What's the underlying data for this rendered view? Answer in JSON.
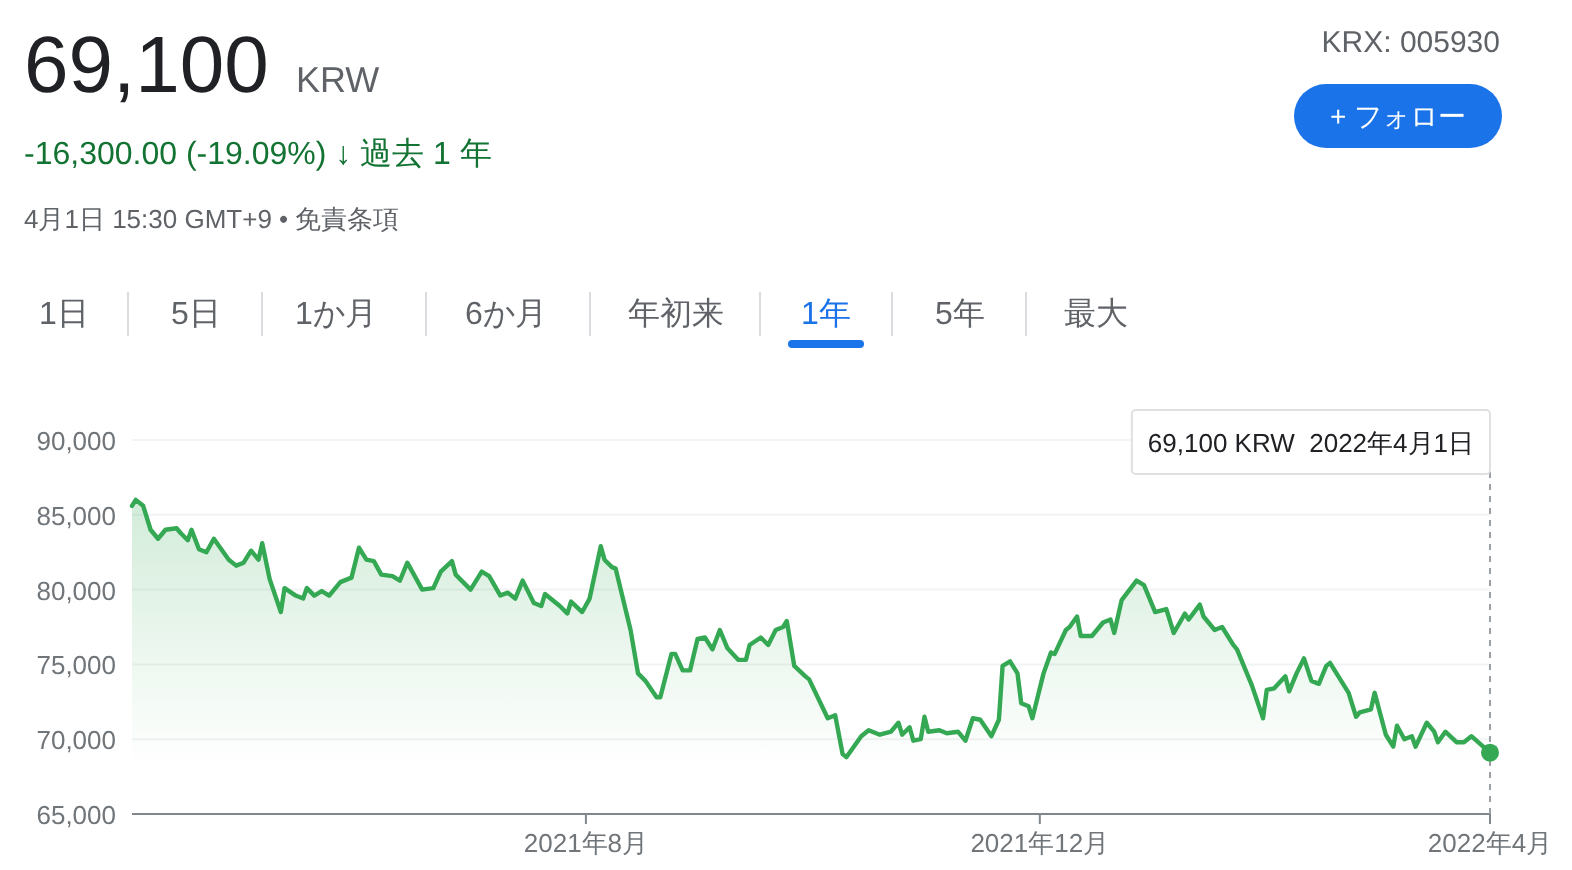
{
  "chart_data": {
    "type": "area",
    "title": "69,100",
    "subtitle": "-16,300.00 (-19.09%) ↓ 過去 1 年",
    "annotations": [
      "KRW",
      "4月1日 15:30 GMT+9 • 免責条項",
      "KRX: 005930",
      "+ フォロー",
      "1日",
      "5日",
      "1か月",
      "6か月",
      "年初来",
      "1年",
      "5年",
      "最大"
    ],
    "x": [
      "2021-04-01",
      "2021-04-02",
      "2021-04-04",
      "2021-04-06",
      "2021-04-08",
      "2021-04-10",
      "2021-04-13",
      "2021-04-14",
      "2021-04-16",
      "2021-04-17",
      "2021-04-19",
      "2021-04-21",
      "2021-04-23",
      "2021-04-27",
      "2021-04-29",
      "2021-05-01",
      "2021-05-03",
      "2021-05-05",
      "2021-05-06",
      "2021-05-08",
      "2021-05-11",
      "2021-05-12",
      "2021-05-15",
      "2021-05-17",
      "2021-05-18",
      "2021-05-20",
      "2021-05-22",
      "2021-05-24",
      "2021-05-27",
      "2021-05-30",
      "2021-06-01",
      "2021-06-03",
      "2021-06-05",
      "2021-06-07",
      "2021-06-10",
      "2021-06-12",
      "2021-06-14",
      "2021-06-16",
      "2021-06-18",
      "2021-06-21",
      "2021-06-23",
      "2021-06-26",
      "2021-06-27",
      "2021-07-01",
      "2021-07-04",
      "2021-07-06",
      "2021-07-09",
      "2021-07-11",
      "2021-07-13",
      "2021-07-15",
      "2021-07-18",
      "2021-07-20",
      "2021-07-21",
      "2021-07-25",
      "2021-07-27",
      "2021-07-28",
      "2021-07-31",
      "2021-08-02",
      "2021-08-05",
      "2021-08-06",
      "2021-08-08",
      "2021-08-09",
      "2021-08-13",
      "2021-08-15",
      "2021-08-17",
      "2021-08-20",
      "2021-08-21",
      "2021-08-24",
      "2021-08-25",
      "2021-08-27",
      "2021-08-29",
      "2021-08-31",
      "2021-09-02",
      "2021-09-04",
      "2021-09-06",
      "2021-09-08",
      "2021-09-11",
      "2021-09-13",
      "2021-09-14",
      "2021-09-17",
      "2021-09-19",
      "2021-09-21",
      "2021-09-23",
      "2021-09-24",
      "2021-09-26",
      "2021-09-29",
      "2021-09-30",
      "2021-10-05",
      "2021-10-07",
      "2021-10-09",
      "2021-10-10",
      "2021-10-14",
      "2021-10-16",
      "2021-10-19",
      "2021-10-22",
      "2021-10-24",
      "2021-10-25",
      "2021-10-27",
      "2021-10-28",
      "2021-10-30",
      "2021-10-31",
      "2021-11-01",
      "2021-11-04",
      "2021-11-06",
      "2021-11-09",
      "2021-11-11",
      "2021-11-13",
      "2021-11-15",
      "2021-11-18",
      "2021-11-20",
      "2021-11-21",
      "2021-11-23",
      "2021-11-25",
      "2021-11-26",
      "2021-11-28",
      "2021-11-29",
      "2021-12-02",
      "2021-12-04",
      "2021-12-05",
      "2021-12-08",
      "2021-12-09",
      "2021-12-11",
      "2021-12-12",
      "2021-12-15",
      "2021-12-18",
      "2021-12-20",
      "2021-12-21",
      "2021-12-23",
      "2021-12-27",
      "2021-12-29",
      "2022-01-01",
      "2022-01-04",
      "2022-01-06",
      "2022-01-09",
      "2022-01-10",
      "2022-01-13",
      "2022-01-14",
      "2022-01-17",
      "2022-01-19",
      "2022-01-22",
      "2022-01-23",
      "2022-01-27",
      "2022-01-30",
      "2022-01-31",
      "2022-02-02",
      "2022-02-05",
      "2022-02-06",
      "2022-02-08",
      "2022-02-10",
      "2022-02-12",
      "2022-02-14",
      "2022-02-16",
      "2022-02-17",
      "2022-02-19",
      "2022-02-22",
      "2022-02-24",
      "2022-02-25",
      "2022-02-28",
      "2022-03-01",
      "2022-03-04",
      "2022-03-06",
      "2022-03-07",
      "2022-03-09",
      "2022-03-11",
      "2022-03-12",
      "2022-03-15",
      "2022-03-17",
      "2022-03-18",
      "2022-03-20",
      "2022-03-23",
      "2022-03-25",
      "2022-03-27",
      "2022-04-01"
    ],
    "series": [
      {
        "color": "#34a853",
        "values": [
          85600,
          86000,
          85600,
          84000,
          83400,
          84000,
          84100,
          83800,
          83300,
          84000,
          82700,
          82500,
          83400,
          82000,
          81600,
          81800,
          82600,
          82000,
          83100,
          80700,
          78500,
          80100,
          79600,
          79400,
          80100,
          79600,
          79900,
          79600,
          80500,
          80800,
          82800,
          82000,
          81900,
          81000,
          80900,
          80600,
          81800,
          80900,
          80000,
          80100,
          81200,
          81900,
          81000,
          80000,
          81200,
          80900,
          79600,
          79800,
          79400,
          80600,
          79100,
          78900,
          79700,
          78900,
          78400,
          79200,
          78500,
          79400,
          82900,
          82000,
          81500,
          81400,
          77300,
          74400,
          73900,
          72800,
          72800,
          75700,
          75700,
          74600,
          74600,
          76700,
          76800,
          76000,
          77300,
          76100,
          75300,
          75300,
          76300,
          76800,
          76300,
          77300,
          77500,
          77900,
          74900,
          74200,
          74000,
          71400,
          71600,
          69000,
          68800,
          70200,
          70600,
          70300,
          70500,
          71100,
          70300,
          70800,
          69900,
          70000,
          71500,
          70500,
          70600,
          70400,
          70500,
          69900,
          71400,
          71300,
          70200,
          71300,
          74900,
          75200,
          74400,
          72400,
          72200,
          71400,
          74400,
          75800,
          75700,
          77300,
          77500,
          78200,
          76900,
          76900,
          77800,
          78000,
          77100,
          79300,
          80600,
          80300,
          78500,
          78700,
          77100,
          78400,
          78000,
          79000,
          78200,
          77300,
          77500,
          76300,
          76000,
          73600,
          71400,
          73300,
          73400,
          74200,
          73200,
          74400,
          75400,
          73900,
          73700,
          74900,
          75100,
          74300,
          73100,
          71500,
          71800,
          72000,
          73100,
          70300,
          69500,
          70900,
          70000,
          70200,
          69500,
          71100,
          70500,
          69800,
          70500,
          69800,
          69800,
          70200,
          69100
        ]
      }
    ],
    "xlim": [
      "2021-04-01",
      "2022-04-01"
    ],
    "xticks": [
      {
        "value": "2021-08",
        "label": "2021年8月"
      },
      {
        "value": "2021-12",
        "label": "2021年12月"
      },
      {
        "value": "2022-04",
        "label": "2022年4月"
      }
    ],
    "ylim": [
      65000,
      90000
    ],
    "yticks": [
      {
        "value": 65000,
        "label": "65,000"
      },
      {
        "value": 70000,
        "label": "70,000"
      },
      {
        "value": 75000,
        "label": "75,000"
      },
      {
        "value": 80000,
        "label": "80,000"
      },
      {
        "value": 85000,
        "label": "85,000"
      },
      {
        "value": 90000,
        "label": "90,000"
      }
    ],
    "ref_lines": [
      {
        "axis": "x",
        "value": "2022-04-01",
        "color": "#9aa0a6",
        "line_style": "dashed",
        "label": "69,100 KRW  2022年4月1日"
      }
    ],
    "grid": "y"
  }
}
